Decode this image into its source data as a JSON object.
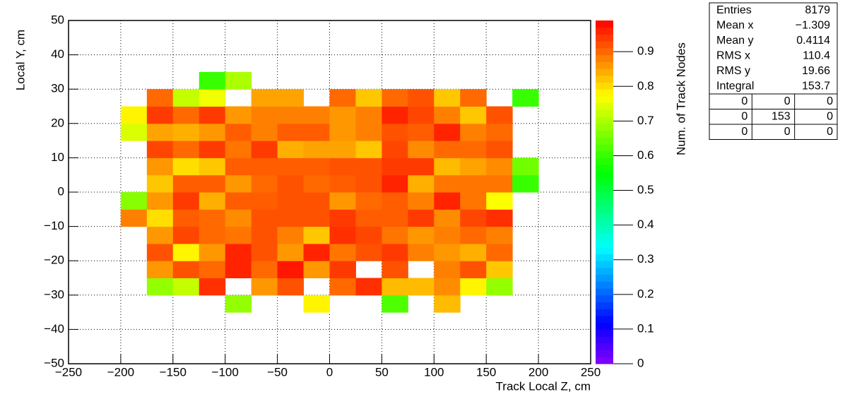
{
  "chart_data": {
    "type": "heatmap",
    "x_label": "Track Local Z, cm",
    "y_label": "Local Y, cm",
    "z_label": "Num. of Track Nodes",
    "xlim": [
      -250,
      250
    ],
    "ylim": [
      -50,
      50
    ],
    "zlim": [
      0,
      0.99
    ],
    "xticks": [
      {
        "value": -250,
        "label": "−250"
      },
      {
        "value": -200,
        "label": "−200"
      },
      {
        "value": -150,
        "label": "−150"
      },
      {
        "value": -100,
        "label": "−100"
      },
      {
        "value": -50,
        "label": "−50"
      },
      0,
      50,
      100,
      150,
      200,
      250
    ],
    "yticks": [
      {
        "value": -50,
        "label": "−50"
      },
      {
        "value": -40,
        "label": "−40"
      },
      {
        "value": -30,
        "label": "−30"
      },
      {
        "value": -20,
        "label": "−20"
      },
      {
        "value": -10,
        "label": "−10"
      },
      0,
      10,
      20,
      30,
      40,
      50
    ],
    "zticks": [
      0,
      0.1,
      0.2,
      0.3,
      0.4,
      0.5,
      0.6,
      0.7,
      0.8,
      0.9
    ],
    "grid": true,
    "x_bins": [
      -200,
      -175,
      -150,
      -125,
      -100,
      -75,
      -50,
      -25,
      0,
      25,
      50,
      75,
      100,
      125,
      150,
      175,
      200
    ],
    "y_bins": [
      -35,
      -30,
      -25,
      -20,
      -15,
      -10,
      -5,
      0,
      5,
      10,
      15,
      20,
      25,
      30,
      35
    ],
    "z": [
      [
        null,
        null,
        null,
        null,
        0.68,
        null,
        null,
        0.78,
        null,
        null,
        0.62,
        null,
        0.83,
        null,
        null,
        null
      ],
      [
        null,
        0.68,
        0.72,
        0.95,
        null,
        0.86,
        0.92,
        null,
        0.9,
        0.95,
        0.83,
        0.83,
        0.87,
        0.78,
        0.68,
        null
      ],
      [
        null,
        0.86,
        0.92,
        0.9,
        0.96,
        0.9,
        0.97,
        0.86,
        0.94,
        null,
        0.92,
        null,
        0.88,
        0.92,
        0.82,
        null
      ],
      [
        null,
        0.92,
        0.78,
        0.86,
        0.96,
        0.92,
        0.86,
        0.96,
        0.89,
        0.92,
        0.94,
        0.88,
        0.86,
        0.84,
        0.9,
        null
      ],
      [
        null,
        0.86,
        0.93,
        0.9,
        0.89,
        0.92,
        0.88,
        0.82,
        0.95,
        0.93,
        0.89,
        0.86,
        0.88,
        0.9,
        0.88,
        null
      ],
      [
        0.88,
        0.8,
        0.91,
        0.9,
        0.87,
        0.92,
        0.92,
        0.92,
        0.94,
        0.91,
        0.91,
        0.94,
        0.87,
        0.93,
        0.95,
        null
      ],
      [
        0.67,
        0.86,
        0.94,
        0.84,
        0.91,
        0.91,
        0.92,
        0.92,
        0.86,
        0.9,
        0.91,
        0.88,
        0.96,
        0.89,
        0.77,
        null
      ],
      [
        null,
        0.82,
        0.91,
        0.91,
        0.86,
        0.9,
        0.92,
        0.9,
        0.91,
        0.92,
        0.96,
        0.84,
        0.89,
        0.89,
        0.89,
        0.6
      ],
      [
        null,
        0.86,
        0.8,
        0.82,
        0.91,
        0.91,
        0.91,
        0.91,
        0.92,
        0.92,
        0.94,
        0.94,
        0.83,
        0.85,
        0.87,
        0.65
      ],
      [
        null,
        0.93,
        0.9,
        0.94,
        0.89,
        0.94,
        0.84,
        0.85,
        0.85,
        0.82,
        0.93,
        0.87,
        0.9,
        0.9,
        0.92,
        null
      ],
      [
        0.74,
        0.85,
        0.84,
        0.86,
        0.91,
        0.88,
        0.91,
        0.91,
        0.86,
        0.88,
        0.92,
        0.91,
        0.96,
        0.88,
        0.9,
        null
      ],
      [
        0.78,
        0.94,
        0.9,
        0.94,
        0.86,
        0.88,
        0.88,
        0.88,
        0.86,
        0.88,
        0.96,
        0.93,
        0.88,
        0.82,
        0.92,
        null
      ],
      [
        null,
        0.9,
        0.72,
        0.76,
        null,
        0.85,
        0.85,
        null,
        0.9,
        0.82,
        0.9,
        0.92,
        0.82,
        0.9,
        null,
        0.6
      ],
      [
        null,
        null,
        null,
        0.6,
        0.7,
        null,
        null,
        null,
        null,
        null,
        null,
        null,
        null,
        null,
        null,
        null
      ]
    ],
    "stats": [
      {
        "label": "Entries",
        "value": "8179"
      },
      {
        "label": "Mean x",
        "value": "−1.309"
      },
      {
        "label": "Mean y",
        "value": "0.4114"
      },
      {
        "label": "RMS x",
        "value": "110.4"
      },
      {
        "label": "RMS y",
        "value": "19.66"
      },
      {
        "label": "Integral",
        "value": "153.7"
      }
    ],
    "overflow": [
      [
        "0",
        "0",
        "0"
      ],
      [
        "0",
        "153",
        "0"
      ],
      [
        "0",
        "0",
        "0"
      ]
    ]
  }
}
